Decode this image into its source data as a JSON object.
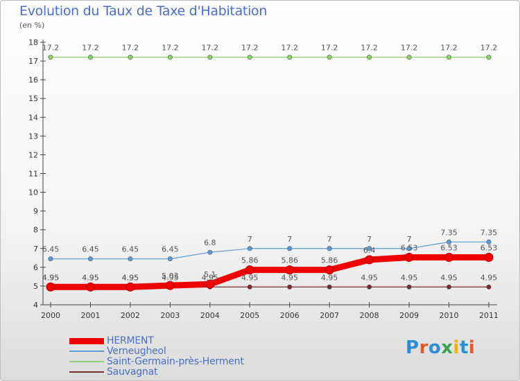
{
  "title": "Evolution du Taux de Taxe d'Habitation",
  "unit": "(en %)",
  "logo": {
    "text": "Proxiti",
    "letter_colors": [
      "#2a8fd6",
      "#e05a2a",
      "#2a8fd6",
      "#3aa64a",
      "#e8b100",
      "#2a8fd6",
      "#e05a2a"
    ]
  },
  "chart_data": {
    "type": "line",
    "x": [
      "2000",
      "2001",
      "2002",
      "2003",
      "2004",
      "2005",
      "2006",
      "2007",
      "2008",
      "2009",
      "2010",
      "2011"
    ],
    "ylim": [
      4,
      18
    ],
    "yticks": [
      "4",
      "5",
      "6",
      "7",
      "8",
      "9",
      "10",
      "11",
      "12",
      "13",
      "14",
      "15",
      "16",
      "17",
      "18"
    ],
    "grid": false,
    "legend_position": "bottom-left",
    "series": [
      {
        "name": "HERMENT",
        "color": "#ee0000",
        "values": [
          4.95,
          4.95,
          4.95,
          5.03,
          5.1,
          5.86,
          5.86,
          5.86,
          6.4,
          6.53,
          6.53,
          6.53
        ],
        "labels": [
          "4.95",
          "4.95",
          "4.95",
          "5.03",
          "5.1",
          "5.86",
          "5.86",
          "5.86",
          "6.4",
          "6.53",
          "6.53",
          "6.53"
        ]
      },
      {
        "name": "Verneugheol",
        "color": "#5b9bd5",
        "values": [
          6.45,
          6.45,
          6.45,
          6.45,
          6.8,
          7,
          7,
          7,
          7,
          7,
          7.35,
          7.35
        ],
        "labels": [
          "6.45",
          "6.45",
          "6.45",
          "6.45",
          "6.8",
          "7",
          "7",
          "7",
          "7",
          "7",
          "7.35",
          "7.35"
        ]
      },
      {
        "name": "Saint-Germain-près-Herment",
        "color": "#8fd16a",
        "values": [
          17.2,
          17.2,
          17.2,
          17.2,
          17.2,
          17.2,
          17.2,
          17.2,
          17.2,
          17.2,
          17.2,
          17.2
        ],
        "labels": [
          "17.2",
          "17.2",
          "17.2",
          "17.2",
          "17.2",
          "17.2",
          "17.2",
          "17.2",
          "17.2",
          "17.2",
          "17.2",
          "17.2"
        ]
      },
      {
        "name": "Sauvagnat",
        "color": "#7a2c2c",
        "values": [
          4.95,
          4.95,
          4.95,
          4.95,
          4.95,
          4.95,
          4.95,
          4.95,
          4.95,
          4.95,
          4.95,
          4.95
        ],
        "labels": [
          "4.95",
          "4.95",
          "4.95",
          "4.95",
          "4.95",
          "4.95",
          "4.95",
          "4.95",
          "4.95",
          "4.95",
          "4.95",
          "4.95"
        ]
      }
    ]
  }
}
